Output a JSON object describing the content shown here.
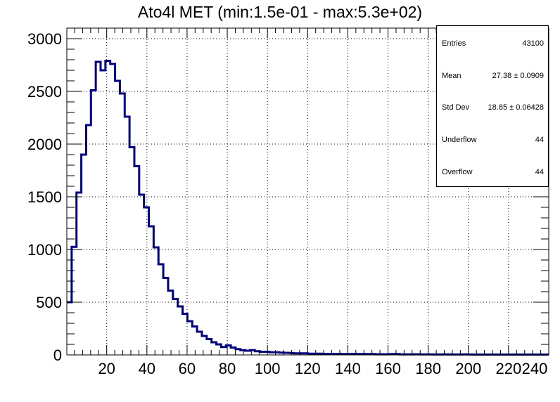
{
  "chart": {
    "title": "Ato4l MET (min:1.5e-01 - max:5.3e+02)"
  },
  "stats": {
    "entries_label": "Entries",
    "entries_value": "43100",
    "mean_label": "Mean",
    "mean_value": "27.38 ± 0.0909",
    "stddev_label": "Std Dev",
    "stddev_value": "18.85 ± 0.06428",
    "underflow_label": "Underflow",
    "underflow_value": "44",
    "overflow_label": "Overflow",
    "overflow_value": "44"
  },
  "colors": {
    "line": "#000080",
    "frame": "#000000",
    "grid": "#000000",
    "background": "#ffffff"
  },
  "chart_data": {
    "type": "histogram",
    "title": "Ato4l MET (min:1.5e-01 - max:5.3e+02)",
    "xlabel": "",
    "ylabel": "",
    "xlim": [
      0.15,
      240
    ],
    "ylim": [
      0,
      3100
    ],
    "bin_width": 2.4,
    "grid": true,
    "legend": "stats box top-right",
    "x_ticks": [
      20,
      40,
      60,
      80,
      100,
      120,
      140,
      160,
      180,
      200,
      220,
      240
    ],
    "y_ticks": [
      0,
      500,
      1000,
      1500,
      2000,
      2500,
      3000
    ],
    "bin_low_edges": [
      0.15,
      2.55,
      4.95,
      7.35,
      9.75,
      12.15,
      14.55,
      16.95,
      19.35,
      21.75,
      24.15,
      26.55,
      28.95,
      31.35,
      33.75,
      36.15,
      38.55,
      40.95,
      43.35,
      45.75,
      48.15,
      50.55,
      52.95,
      55.35,
      57.75,
      60.15,
      62.55,
      64.95,
      67.35,
      69.75,
      72.15,
      74.55,
      76.95,
      79.35,
      81.75,
      84.15,
      86.55,
      88.95,
      91.35,
      93.75,
      96.15,
      98.55,
      100.95,
      103.35,
      105.75,
      108.15,
      110.55,
      112.95,
      115.35,
      117.75,
      120.15,
      122.55,
      124.95,
      127.35,
      129.75,
      132.15,
      134.55,
      136.95,
      139.35,
      141.75,
      144.15,
      146.55,
      148.95,
      151.35,
      153.75,
      156.15,
      158.55,
      160.95,
      163.35,
      165.75,
      168.15,
      170.55,
      172.95,
      175.35,
      177.75,
      180.15,
      182.55,
      184.95,
      187.35,
      189.75,
      192.15,
      194.55,
      196.95,
      199.35,
      201.75,
      204.15,
      206.55,
      208.95,
      211.35,
      213.75,
      216.15,
      218.55,
      220.95,
      223.35,
      225.75,
      228.15,
      230.55,
      232.95,
      235.35,
      237.75
    ],
    "counts": [
      500,
      1025,
      1540,
      1900,
      2180,
      2510,
      2780,
      2700,
      2790,
      2760,
      2600,
      2480,
      2260,
      1970,
      1790,
      1520,
      1400,
      1220,
      1020,
      860,
      730,
      610,
      530,
      460,
      390,
      320,
      270,
      220,
      180,
      150,
      120,
      100,
      75,
      90,
      70,
      55,
      45,
      40,
      45,
      35,
      30,
      30,
      25,
      25,
      22,
      20,
      18,
      15,
      15,
      15,
      12,
      12,
      12,
      10,
      10,
      10,
      10,
      8,
      8,
      10,
      8,
      8,
      8,
      8,
      6,
      6,
      6,
      8,
      8,
      5,
      5,
      5,
      6,
      5,
      5,
      5,
      4,
      4,
      5,
      4,
      4,
      4,
      5,
      4,
      3,
      3,
      3,
      3,
      3,
      3,
      3,
      3,
      3,
      3,
      3,
      3,
      3,
      3,
      3,
      3
    ]
  }
}
